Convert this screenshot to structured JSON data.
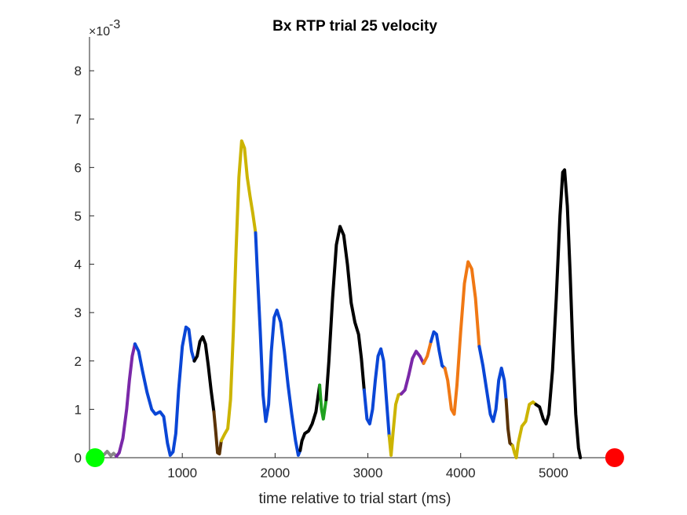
{
  "chart_data": {
    "type": "line",
    "title": "Bx  RTP trial 25 velocity",
    "xlabel": "time relative to trial start (ms)",
    "ylabel": "",
    "y_exponent_base": "×10",
    "y_exponent": "-3",
    "xlim": [
      0,
      5720
    ],
    "ylim": [
      0,
      8.7
    ],
    "x_ticks": [
      1000,
      2000,
      3000,
      4000,
      5000
    ],
    "y_ticks": [
      0,
      1,
      2,
      3,
      4,
      5,
      6,
      7,
      8
    ],
    "grid": false,
    "start_marker": {
      "x": 60,
      "y": 0,
      "color": "#00ff00"
    },
    "end_marker": {
      "x": 5660,
      "y": 0,
      "color": "#ff0000"
    },
    "segments": [
      {
        "color": "#888888",
        "points": [
          [
            60,
            0.02
          ],
          [
            110,
            0.08
          ],
          [
            150,
            0.05
          ],
          [
            190,
            0.13
          ],
          [
            230,
            0.04
          ],
          [
            260,
            0.09
          ],
          [
            290,
            0.03
          ]
        ]
      },
      {
        "color": "#7a28a8",
        "points": [
          [
            290,
            0.03
          ],
          [
            320,
            0.1
          ],
          [
            360,
            0.4
          ],
          [
            400,
            1.0
          ],
          [
            430,
            1.6
          ],
          [
            460,
            2.1
          ],
          [
            490,
            2.35
          ]
        ]
      },
      {
        "color": "#0a46d6",
        "points": [
          [
            490,
            2.35
          ],
          [
            530,
            2.2
          ],
          [
            570,
            1.8
          ],
          [
            620,
            1.35
          ],
          [
            670,
            1.0
          ],
          [
            710,
            0.9
          ],
          [
            760,
            0.95
          ],
          [
            800,
            0.85
          ],
          [
            840,
            0.3
          ],
          [
            870,
            0.05
          ],
          [
            900,
            0.12
          ],
          [
            930,
            0.5
          ],
          [
            960,
            1.4
          ],
          [
            1000,
            2.3
          ],
          [
            1040,
            2.7
          ],
          [
            1070,
            2.65
          ],
          [
            1100,
            2.2
          ],
          [
            1130,
            2.0
          ]
        ]
      },
      {
        "color": "#000000",
        "points": [
          [
            1130,
            2.0
          ],
          [
            1160,
            2.1
          ],
          [
            1190,
            2.4
          ],
          [
            1220,
            2.5
          ],
          [
            1250,
            2.35
          ],
          [
            1280,
            1.9
          ],
          [
            1310,
            1.4
          ],
          [
            1340,
            0.95
          ]
        ]
      },
      {
        "color": "#5a3205",
        "points": [
          [
            1340,
            0.95
          ],
          [
            1360,
            0.55
          ],
          [
            1380,
            0.1
          ],
          [
            1400,
            0.08
          ],
          [
            1420,
            0.35
          ]
        ]
      },
      {
        "color": "#ccb400",
        "points": [
          [
            1420,
            0.35
          ],
          [
            1460,
            0.5
          ],
          [
            1490,
            0.6
          ],
          [
            1520,
            1.2
          ],
          [
            1550,
            2.6
          ],
          [
            1580,
            4.3
          ],
          [
            1610,
            5.8
          ],
          [
            1640,
            6.55
          ],
          [
            1670,
            6.4
          ],
          [
            1700,
            5.8
          ],
          [
            1730,
            5.4
          ],
          [
            1760,
            5.05
          ],
          [
            1790,
            4.65
          ]
        ]
      },
      {
        "color": "#0a46d6",
        "points": [
          [
            1790,
            4.65
          ],
          [
            1810,
            3.8
          ],
          [
            1840,
            2.6
          ],
          [
            1870,
            1.3
          ],
          [
            1900,
            0.75
          ],
          [
            1930,
            1.1
          ],
          [
            1960,
            2.2
          ],
          [
            1990,
            2.9
          ],
          [
            2020,
            3.05
          ],
          [
            2060,
            2.8
          ],
          [
            2100,
            2.2
          ],
          [
            2140,
            1.5
          ],
          [
            2180,
            0.9
          ],
          [
            2220,
            0.35
          ],
          [
            2250,
            0.05
          ],
          [
            2270,
            0.15
          ]
        ]
      },
      {
        "color": "#000000",
        "points": [
          [
            2270,
            0.15
          ],
          [
            2290,
            0.35
          ],
          [
            2320,
            0.5
          ],
          [
            2360,
            0.55
          ],
          [
            2400,
            0.7
          ],
          [
            2440,
            0.95
          ],
          [
            2480,
            1.5
          ]
        ]
      },
      {
        "color": "#1fa11f",
        "points": [
          [
            2480,
            1.5
          ],
          [
            2500,
            1.0
          ],
          [
            2520,
            0.8
          ],
          [
            2550,
            1.2
          ]
        ]
      },
      {
        "color": "#000000",
        "points": [
          [
            2550,
            1.2
          ],
          [
            2580,
            2.0
          ],
          [
            2620,
            3.3
          ],
          [
            2660,
            4.4
          ],
          [
            2700,
            4.78
          ],
          [
            2740,
            4.6
          ],
          [
            2780,
            4.0
          ],
          [
            2820,
            3.2
          ],
          [
            2860,
            2.8
          ],
          [
            2900,
            2.55
          ],
          [
            2930,
            2.05
          ],
          [
            2960,
            1.4
          ]
        ]
      },
      {
        "color": "#0a46d6",
        "points": [
          [
            2960,
            1.4
          ],
          [
            2990,
            0.8
          ],
          [
            3020,
            0.7
          ],
          [
            3050,
            1.0
          ],
          [
            3080,
            1.6
          ],
          [
            3110,
            2.1
          ],
          [
            3140,
            2.25
          ],
          [
            3170,
            2.0
          ],
          [
            3200,
            1.2
          ],
          [
            3230,
            0.45
          ]
        ]
      },
      {
        "color": "#ccb400",
        "points": [
          [
            3230,
            0.45
          ],
          [
            3250,
            0.05
          ],
          [
            3270,
            0.5
          ],
          [
            3300,
            1.1
          ],
          [
            3330,
            1.3
          ],
          [
            3360,
            1.32
          ]
        ]
      },
      {
        "color": "#7a28a8",
        "points": [
          [
            3360,
            1.32
          ],
          [
            3400,
            1.4
          ],
          [
            3440,
            1.7
          ],
          [
            3480,
            2.05
          ],
          [
            3520,
            2.2
          ],
          [
            3560,
            2.1
          ],
          [
            3600,
            1.95
          ]
        ]
      },
      {
        "color": "#f07814",
        "points": [
          [
            3600,
            1.95
          ],
          [
            3640,
            2.1
          ],
          [
            3680,
            2.4
          ]
        ]
      },
      {
        "color": "#0a46d6",
        "points": [
          [
            3680,
            2.4
          ],
          [
            3710,
            2.6
          ],
          [
            3740,
            2.55
          ],
          [
            3770,
            2.2
          ],
          [
            3800,
            1.9
          ],
          [
            3830,
            1.85
          ]
        ]
      },
      {
        "color": "#f07814",
        "points": [
          [
            3830,
            1.85
          ],
          [
            3860,
            1.6
          ],
          [
            3900,
            1.0
          ],
          [
            3930,
            0.9
          ],
          [
            3960,
            1.5
          ],
          [
            4000,
            2.6
          ],
          [
            4040,
            3.6
          ],
          [
            4080,
            4.05
          ],
          [
            4120,
            3.9
          ],
          [
            4160,
            3.3
          ],
          [
            4200,
            2.3
          ]
        ]
      },
      {
        "color": "#0a46d6",
        "points": [
          [
            4200,
            2.3
          ],
          [
            4240,
            1.9
          ],
          [
            4280,
            1.4
          ],
          [
            4320,
            0.9
          ],
          [
            4350,
            0.75
          ],
          [
            4380,
            1.0
          ],
          [
            4410,
            1.6
          ],
          [
            4440,
            1.85
          ],
          [
            4470,
            1.6
          ],
          [
            4490,
            1.2
          ]
        ]
      },
      {
        "color": "#5a3205",
        "points": [
          [
            4490,
            1.2
          ],
          [
            4510,
            0.6
          ],
          [
            4530,
            0.3
          ],
          [
            4560,
            0.25
          ]
        ]
      },
      {
        "color": "#ccb400",
        "points": [
          [
            4560,
            0.25
          ],
          [
            4580,
            0.1
          ],
          [
            4600,
            0.0
          ],
          [
            4620,
            0.3
          ],
          [
            4660,
            0.65
          ],
          [
            4700,
            0.75
          ],
          [
            4740,
            1.1
          ],
          [
            4780,
            1.15
          ],
          [
            4810,
            1.1
          ]
        ]
      },
      {
        "color": "#000000",
        "points": [
          [
            4810,
            1.1
          ],
          [
            4850,
            1.05
          ],
          [
            4890,
            0.8
          ],
          [
            4920,
            0.7
          ],
          [
            4950,
            0.9
          ],
          [
            4990,
            1.8
          ],
          [
            5030,
            3.3
          ],
          [
            5070,
            5.0
          ],
          [
            5100,
            5.9
          ],
          [
            5120,
            5.95
          ],
          [
            5150,
            5.2
          ],
          [
            5180,
            3.8
          ],
          [
            5210,
            2.2
          ],
          [
            5240,
            0.9
          ],
          [
            5270,
            0.2
          ],
          [
            5290,
            0.0
          ]
        ]
      }
    ]
  }
}
